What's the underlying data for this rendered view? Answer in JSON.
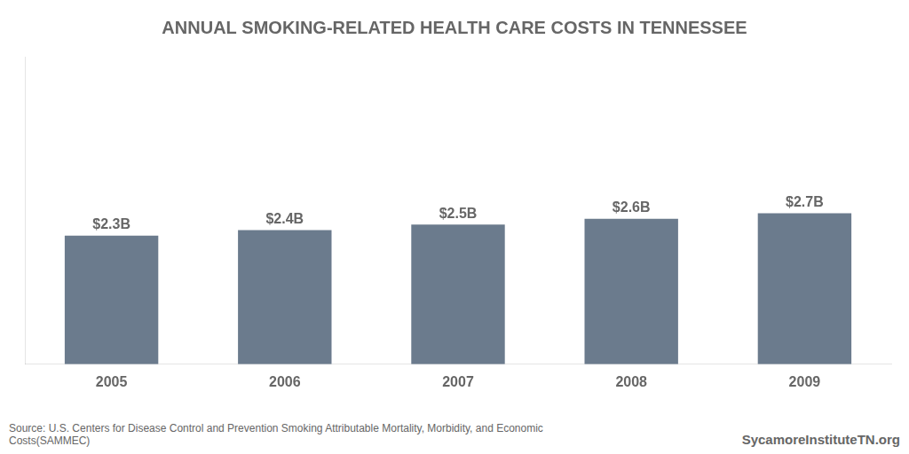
{
  "chart_data": {
    "type": "bar",
    "title": "ANNUAL SMOKING-RELATED HEALTH CARE COSTS IN TENNESSEE",
    "categories": [
      "2005",
      "2006",
      "2007",
      "2008",
      "2009"
    ],
    "values": [
      2.3,
      2.4,
      2.5,
      2.6,
      2.7
    ],
    "value_labels": [
      "$2.3B",
      "$2.4B",
      "$2.5B",
      "$2.6B",
      "$2.7B"
    ],
    "data_labels": true,
    "color": "#6b7b8d",
    "ylim": [
      0,
      5.5
    ],
    "tick_labels": "x",
    "grid": false,
    "annotations": [
      "Source: U.S. Centers for Disease Control and Prevention Smoking Attributable Mortality, Morbidity, and Economic\nCosts(SAMMEC)",
      "SycamoreInstituteTN.org"
    ]
  }
}
